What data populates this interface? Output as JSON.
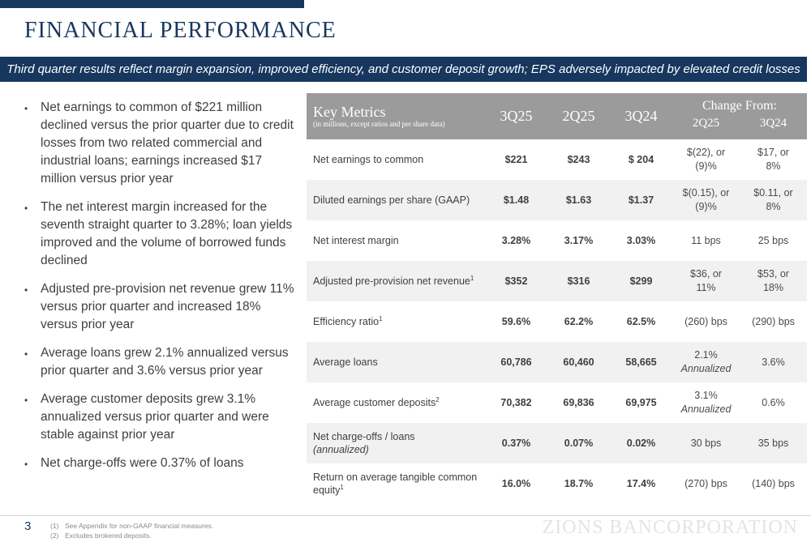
{
  "slide": {
    "title": "FINANCIAL PERFORMANCE",
    "banner": "Third quarter results reflect margin expansion, improved efficiency, and customer deposit growth; EPS adversely impacted by elevated credit losses",
    "page_number": "3",
    "logo_text": "ZIONS BANCORPORATION"
  },
  "colors": {
    "navy": "#17375E",
    "table_header_gray": "#9B9B9B",
    "alt_row_gray": "#F1F1F1",
    "body_text": "#3F3F3F",
    "footnote_gray": "#8A8A8A",
    "logo_gray": "#E4E4E4"
  },
  "bullets": [
    "Net earnings to common of $221 million declined versus the prior quarter due to credit losses from two related commercial and industrial loans; earnings increased $17 million versus prior year",
    "The net interest margin increased for the seventh straight quarter to 3.28%; loan yields improved and the volume of borrowed funds declined",
    "Adjusted pre-provision net revenue grew 11% versus prior quarter and increased 18% versus prior year",
    "Average loans grew 2.1% annualized versus prior quarter and 3.6% versus prior year",
    "Average customer deposits grew 3.1% annualized versus prior quarter and were stable against prior year",
    "Net charge-offs were 0.37% of loans"
  ],
  "table": {
    "title": "Key Metrics",
    "subtitle": "(in millions, except ratios and per share data)",
    "col_headers": [
      "3Q25",
      "2Q25",
      "3Q24"
    ],
    "change_header": "Change From:",
    "change_subheaders": [
      "2Q25",
      "3Q24"
    ],
    "rows": [
      {
        "label": "Net earnings to common",
        "sup": "",
        "label2": "",
        "values": [
          "$221",
          "$243",
          "$ 204"
        ],
        "change": [
          {
            "lines": [
              "$(22), or",
              "(9)%"
            ],
            "italic2": false
          },
          {
            "lines": [
              "$17, or",
              "8%"
            ],
            "italic2": false
          }
        ]
      },
      {
        "label": "Diluted earnings per share (GAAP)",
        "sup": "",
        "label2": "",
        "values": [
          "$1.48",
          "$1.63",
          "$1.37"
        ],
        "change": [
          {
            "lines": [
              "$(0.15), or",
              "(9)%"
            ],
            "italic2": false
          },
          {
            "lines": [
              "$0.11, or",
              "8%"
            ],
            "italic2": false
          }
        ]
      },
      {
        "label": "Net interest margin",
        "sup": "",
        "label2": "",
        "values": [
          "3.28%",
          "3.17%",
          "3.03%"
        ],
        "change": [
          {
            "lines": [
              "11 bps"
            ],
            "italic2": false
          },
          {
            "lines": [
              "25 bps"
            ],
            "italic2": false
          }
        ]
      },
      {
        "label": "Adjusted pre-provision net revenue",
        "sup": "1",
        "label2": "",
        "values": [
          "$352",
          "$316",
          "$299"
        ],
        "change": [
          {
            "lines": [
              "$36, or",
              "11%"
            ],
            "italic2": false
          },
          {
            "lines": [
              "$53, or",
              "18%"
            ],
            "italic2": false
          }
        ]
      },
      {
        "label": "Efficiency ratio",
        "sup": "1",
        "label2": "",
        "values": [
          "59.6%",
          "62.2%",
          "62.5%"
        ],
        "change": [
          {
            "lines": [
              "(260) bps"
            ],
            "italic2": false
          },
          {
            "lines": [
              "(290) bps"
            ],
            "italic2": false
          }
        ]
      },
      {
        "label": "Average loans",
        "sup": "",
        "label2": "",
        "values": [
          "60,786",
          "60,460",
          "58,665"
        ],
        "change": [
          {
            "lines": [
              "2.1%",
              "Annualized"
            ],
            "italic2": true
          },
          {
            "lines": [
              "3.6%"
            ],
            "italic2": false
          }
        ]
      },
      {
        "label": "Average customer deposits",
        "sup": "2",
        "label2": "",
        "values": [
          "70,382",
          "69,836",
          "69,975"
        ],
        "change": [
          {
            "lines": [
              "3.1%",
              "Annualized"
            ],
            "italic2": true
          },
          {
            "lines": [
              "0.6%"
            ],
            "italic2": false
          }
        ]
      },
      {
        "label": "Net charge-offs / loans",
        "sup": "",
        "label2": "(annualized)",
        "values": [
          "0.37%",
          "0.07%",
          "0.02%"
        ],
        "change": [
          {
            "lines": [
              "30 bps"
            ],
            "italic2": false
          },
          {
            "lines": [
              "35 bps"
            ],
            "italic2": false
          }
        ]
      },
      {
        "label": "Return on average tangible common equity",
        "sup": "1",
        "label2": "",
        "values": [
          "16.0%",
          "18.7%",
          "17.4%"
        ],
        "change": [
          {
            "lines": [
              "(270) bps"
            ],
            "italic2": false
          },
          {
            "lines": [
              "(140) bps"
            ],
            "italic2": false
          }
        ]
      }
    ]
  },
  "footnotes": [
    {
      "num": "(1)",
      "text": "See Appendix for non-GAAP financial measures."
    },
    {
      "num": "(2)",
      "text": "Excludes brokered deposits."
    }
  ]
}
